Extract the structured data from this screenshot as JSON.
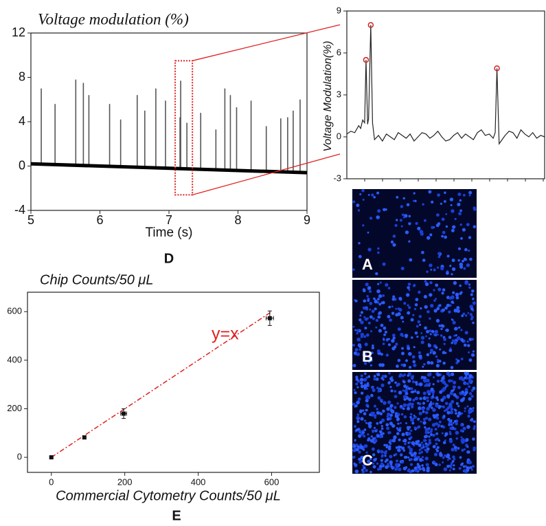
{
  "chart_data": [
    {
      "type": "spike",
      "title": "Voltage modulation (%)",
      "xlabel": "Time (s)",
      "panel": "D",
      "xlim": [
        5,
        9
      ],
      "xticks": [
        5,
        6,
        7,
        8,
        9
      ],
      "ylim": [
        -4,
        12
      ],
      "yticks": [
        -4,
        0,
        4,
        8,
        12
      ],
      "color": "#555555",
      "spikes": {
        "x": [
          5.15,
          5.35,
          5.65,
          5.76,
          5.84,
          6.14,
          6.3,
          6.54,
          6.65,
          6.81,
          6.95,
          7.16,
          7.17,
          7.26,
          7.46,
          7.68,
          7.81,
          7.89,
          7.98,
          8.19,
          8.41,
          8.62,
          8.72,
          8.8,
          8.9
        ],
        "values": [
          7.0,
          5.6,
          7.8,
          7.5,
          6.4,
          5.6,
          4.2,
          6.4,
          5.0,
          7.0,
          5.9,
          4.4,
          7.7,
          3.9,
          4.8,
          3.3,
          7.0,
          6.4,
          5.3,
          5.9,
          3.6,
          4.3,
          4.4,
          5.0,
          6.0
        ]
      },
      "baseline": {
        "x": [
          5,
          9
        ],
        "values": [
          0.2,
          -0.6
        ]
      },
      "zoom": {
        "xlim": [
          7.09,
          7.34
        ],
        "ylim": [
          -2.6,
          9.5
        ],
        "color": "#e02020"
      }
    },
    {
      "type": "line",
      "ylabel": "Voltage Modulation(%)",
      "xlim": [
        0,
        100
      ],
      "ylim": [
        -3,
        9
      ],
      "yticks": [
        -3,
        0,
        3,
        6,
        9
      ],
      "color": "#222222",
      "x": [
        0,
        2,
        4,
        6,
        7,
        8,
        9,
        9.7,
        10.5,
        11,
        12.1,
        13,
        14,
        16,
        18,
        20,
        22,
        24,
        26,
        28,
        30,
        32,
        34,
        36,
        38,
        40,
        42,
        44,
        46,
        48,
        50,
        52,
        54,
        56,
        58,
        60,
        62,
        64,
        66,
        68,
        70,
        72,
        74,
        75,
        75.9,
        77,
        78,
        80,
        82,
        84,
        86,
        88,
        90,
        92,
        94,
        96,
        98,
        100
      ],
      "values": [
        0.2,
        0.4,
        0.3,
        0.8,
        0.6,
        1.2,
        1.0,
        5.5,
        0.9,
        1.3,
        8.0,
        1.0,
        -0.2,
        0.1,
        -0.3,
        0.2,
        0.0,
        -0.2,
        0.3,
        0.1,
        -0.1,
        0.2,
        -0.3,
        0.0,
        0.3,
        0.2,
        -0.1,
        0.1,
        0.4,
        0.0,
        -0.3,
        -0.2,
        0.1,
        0.3,
        -0.1,
        0.2,
        0.0,
        -0.2,
        0.3,
        0.5,
        0.1,
        0.2,
        -0.1,
        0.3,
        4.9,
        -0.5,
        -0.3,
        0.1,
        0.4,
        0.3,
        -0.1,
        0.5,
        0.2,
        0.0,
        0.3,
        -0.1,
        0.1,
        0.0
      ],
      "peaks": {
        "x": [
          9.7,
          12.1,
          75.9
        ],
        "values": [
          5.5,
          8.0,
          4.9
        ],
        "color": "#d02020"
      }
    },
    {
      "type": "scatter",
      "title": "Chip Counts/50 μL",
      "xlabel": "Commercial Cytometry Counts/50 μL",
      "panel": "E",
      "xlim": [
        -65,
        730
      ],
      "xticks": [
        0,
        200,
        400,
        600
      ],
      "ylim": [
        -62,
        680
      ],
      "yticks": [
        0,
        200,
        400,
        600
      ],
      "series": [
        {
          "color": "#111111",
          "x": [
            0,
            90,
            197,
            595
          ],
          "values": [
            0,
            82,
            180,
            573
          ],
          "yerr": [
            4,
            6,
            20,
            30
          ],
          "xerr": [
            3,
            4,
            8,
            10
          ]
        }
      ],
      "fit": {
        "label": "y=x",
        "x": [
          0,
          600
        ],
        "values": [
          0,
          600
        ],
        "color": "#e02020"
      }
    }
  ],
  "images": [
    {
      "label": "A"
    },
    {
      "label": "B"
    },
    {
      "label": "C"
    }
  ]
}
